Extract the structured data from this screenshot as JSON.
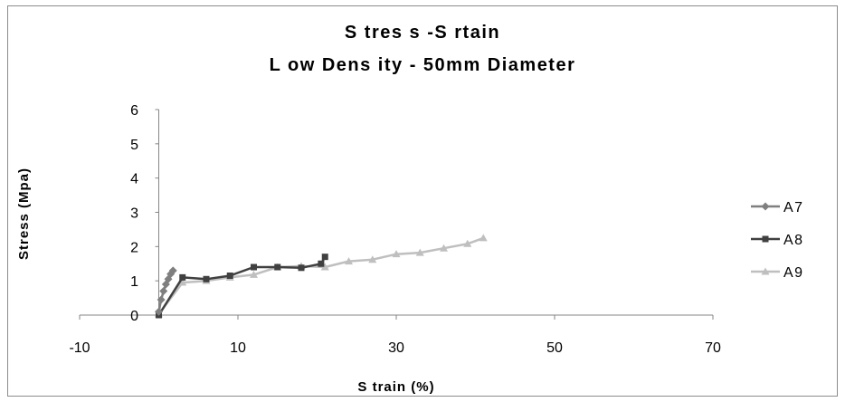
{
  "chart_data": {
    "type": "line",
    "title": "S tres s -S rtain",
    "subtitle": "L ow Dens ity - 50mm Diameter",
    "xlabel": "S train (%)",
    "ylabel": "Stress (Mpa)",
    "xlim": [
      -10,
      70
    ],
    "ylim": [
      0,
      6
    ],
    "xticks": [
      "-10",
      "10",
      "30",
      "50",
      "70"
    ],
    "xtick_values": [
      -10,
      10,
      30,
      50,
      70
    ],
    "yticks": [
      "0",
      "1",
      "2",
      "3",
      "4",
      "5",
      "6"
    ],
    "ytick_values": [
      0,
      1,
      2,
      3,
      4,
      5,
      6
    ],
    "grid": false,
    "legend_position": "right",
    "series": [
      {
        "name": "A7",
        "marker": "diamond",
        "color": "#7f7f7f",
        "x": [
          0,
          0.3,
          0.6,
          0.9,
          1.2,
          1.5,
          1.8
        ],
        "y": [
          0.1,
          0.45,
          0.7,
          0.9,
          1.05,
          1.2,
          1.3
        ]
      },
      {
        "name": "A8",
        "marker": "square",
        "color": "#404040",
        "x": [
          0,
          3,
          6,
          9,
          12,
          15,
          18,
          20.5,
          21
        ],
        "y": [
          0,
          1.1,
          1.05,
          1.15,
          1.4,
          1.4,
          1.38,
          1.5,
          1.7
        ]
      },
      {
        "name": "A9",
        "marker": "triangle",
        "color": "#bfbfbf",
        "x": [
          0,
          3,
          6,
          9,
          12,
          15,
          18,
          21,
          24,
          27,
          30,
          33,
          36,
          39,
          41
        ],
        "y": [
          0.03,
          0.95,
          1.0,
          1.1,
          1.18,
          1.4,
          1.43,
          1.4,
          1.57,
          1.62,
          1.78,
          1.82,
          1.95,
          2.08,
          2.25
        ]
      }
    ]
  }
}
